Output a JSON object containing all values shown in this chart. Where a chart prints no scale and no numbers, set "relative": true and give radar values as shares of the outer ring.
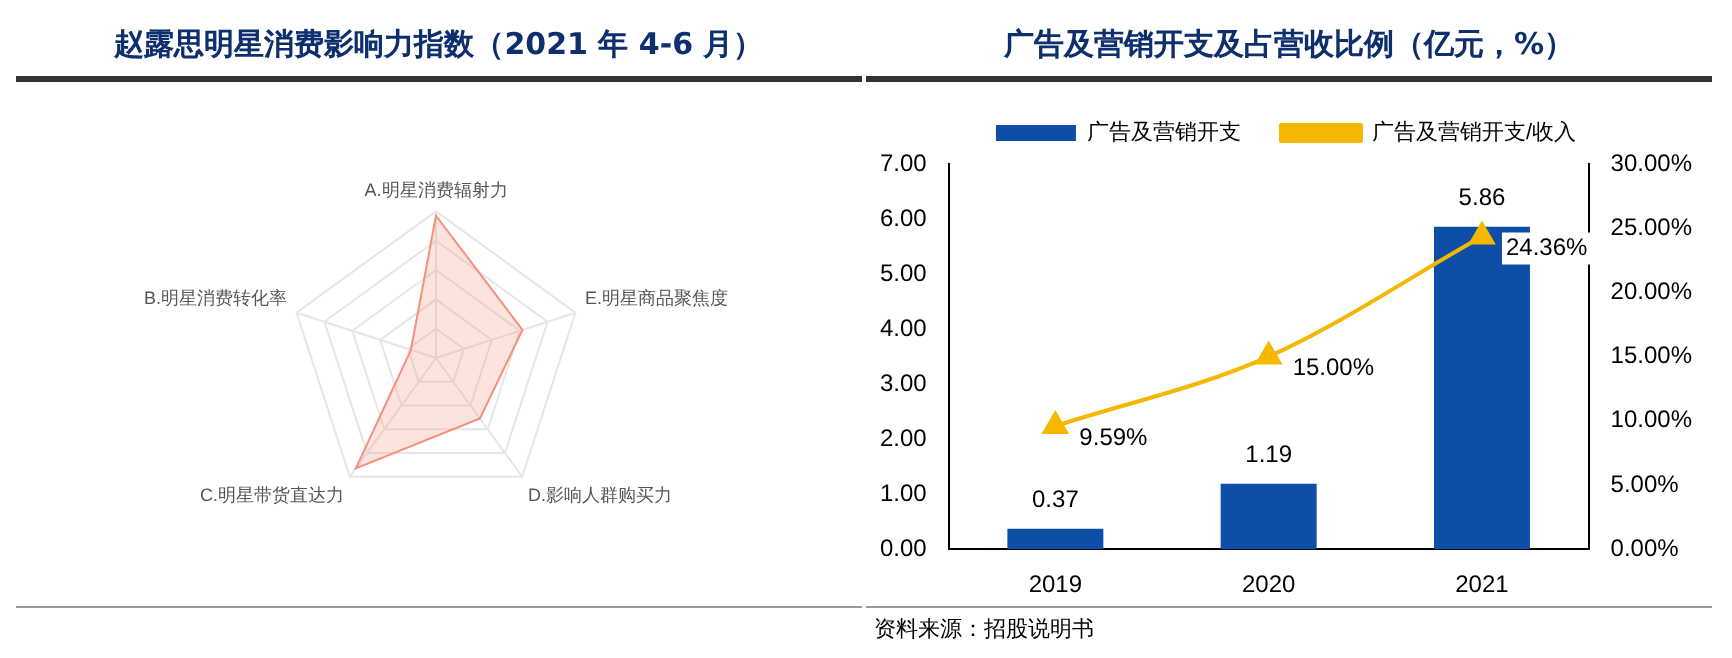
{
  "chart_data": [
    {
      "type": "radar",
      "title": "赵露思明星消费影响力指数（2021 年 4-6 月）",
      "categories": [
        "A.明星消费辐射力",
        "E.明星商品聚焦度",
        "D.影响人群购买力",
        "C.明星带货直达力",
        "B.明星消费转化率"
      ],
      "relative": true,
      "grid": true,
      "series": [
        {
          "color": "#f4907c",
          "values": [
            0.97,
            0.62,
            0.51,
            0.93,
            0.18
          ]
        }
      ]
    },
    {
      "type": "bar",
      "title": "广告及营销开支及占营收比例（亿元，%）",
      "categories": [
        "2019",
        "2020",
        "2021"
      ],
      "legend": "top",
      "marker": "triangle",
      "grid": false,
      "ylim": [
        0,
        7
      ],
      "yticks": [
        {
          "value": 0,
          "label": "0.00"
        },
        {
          "value": 1,
          "label": "1.00"
        },
        {
          "value": 2,
          "label": "2.00"
        },
        {
          "value": 3,
          "label": "3.00"
        },
        {
          "value": 4,
          "label": "4.00"
        },
        {
          "value": 5,
          "label": "5.00"
        },
        {
          "value": 6,
          "label": "6.00"
        },
        {
          "value": 7,
          "label": "7.00"
        }
      ],
      "y2lim": [
        0,
        30
      ],
      "y2ticks": [
        {
          "value": 0,
          "label": "0.00%"
        },
        {
          "value": 5,
          "label": "5.00%"
        },
        {
          "value": 10,
          "label": "10.00%"
        },
        {
          "value": 15,
          "label": "15.00%"
        },
        {
          "value": 20,
          "label": "20.00%"
        },
        {
          "value": 25,
          "label": "25.00%"
        },
        {
          "value": 30,
          "label": "30.00%"
        }
      ],
      "series": [
        {
          "name": "广告及营销开支",
          "type": "bar",
          "color": "#0d4ea6",
          "values": [
            0.37,
            1.19,
            5.86
          ],
          "value_labels": [
            "0.37",
            "1.19",
            "5.86"
          ]
        },
        {
          "name": "广告及营销开支/收入",
          "type": "line",
          "axis": "y2",
          "color": "#f5b800",
          "values": [
            9.59,
            15.0,
            24.36
          ],
          "value_labels": [
            "9.59%",
            "15.00%",
            "24.36%"
          ]
        }
      ],
      "annotations": [
        "资料来源：招股说明书"
      ]
    }
  ]
}
